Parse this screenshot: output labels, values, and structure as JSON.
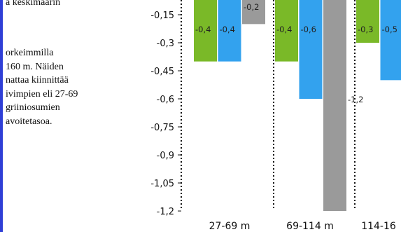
{
  "text_column": {
    "top_line": "a keskimäärin",
    "paragraph_lines": [
      "orkeimmilla",
      "160 m. Näiden",
      "nattaa kiinnittää",
      "ivimpien eli 27-69",
      "griiniosumien",
      "avoitetasoa."
    ]
  },
  "colors": {
    "background": "#2f3fd6",
    "green": "#7ab928",
    "blue": "#33a2ee",
    "gray": "#9a9a9a"
  },
  "chart_data": {
    "type": "bar",
    "title": "",
    "xlabel": "",
    "ylabel": "",
    "categories": [
      "27-69 m",
      "69-114 m",
      "114-16"
    ],
    "ylim": [
      -1.2,
      0
    ],
    "yticks": [
      "-0,15",
      "-0,3",
      "-0,45",
      "-0,6",
      "-0,75",
      "-0,9",
      "-1,05",
      "-1,2"
    ],
    "ytick_values": [
      -0.15,
      -0.3,
      -0.45,
      -0.6,
      -0.75,
      -0.9,
      -1.05,
      -1.2
    ],
    "grid": false,
    "series": [
      {
        "color": "green",
        "values": [
          -0.4,
          -0.4,
          -0.3
        ],
        "labels": [
          "-0,4",
          "-0,4",
          "-0,3"
        ]
      },
      {
        "color": "blue",
        "values": [
          -0.4,
          -0.6,
          -0.5
        ],
        "labels": [
          "-0,4",
          "-0,6",
          "-0,5"
        ]
      },
      {
        "color": "gray",
        "values": [
          -0.2,
          -1.2,
          null
        ],
        "labels": [
          "-0,2",
          "-1,2",
          ""
        ]
      }
    ]
  }
}
